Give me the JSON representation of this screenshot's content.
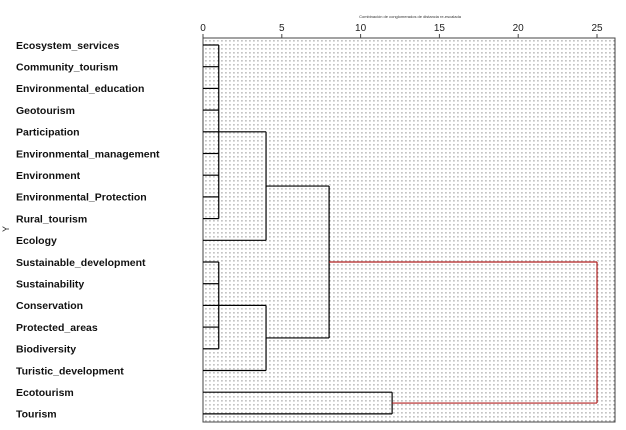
{
  "chart_data": {
    "type": "dendrogram",
    "title": "Combinación de conglomerados de distancia re-escalada",
    "ylabel": "Y",
    "xlim": [
      0,
      25
    ],
    "x_ticks": [
      0,
      5,
      10,
      15,
      20,
      25
    ],
    "grid": true,
    "highlight_color": "#b22222",
    "line_color": "#000000",
    "leaves": [
      "Ecosystem_services",
      "Community_tourism",
      "Environmental_education",
      "Geotourism",
      "Participation",
      "Environmental_management",
      "Environment",
      "Environmental_Protection",
      "Rural_tourism",
      "Ecology",
      "Sustainable_development",
      "Sustainability",
      "Conservation",
      "Protected_areas",
      "Biodiversity",
      "Turistic_development",
      "Ecotourism",
      "Tourism"
    ],
    "merges": [
      {
        "id": "A",
        "children": [
          "Ecosystem_services",
          "Community_tourism",
          "Environmental_education",
          "Geotourism",
          "Participation",
          "Environmental_management",
          "Environment",
          "Environmental_Protection",
          "Rural_tourism"
        ],
        "distance": 1
      },
      {
        "id": "B",
        "children": [
          "Sustainable_development",
          "Sustainability",
          "Conservation",
          "Protected_areas",
          "Biodiversity"
        ],
        "distance": 1
      },
      {
        "id": "C",
        "children": [
          "A",
          "Ecology"
        ],
        "distance": 4
      },
      {
        "id": "D",
        "children": [
          "B",
          "Turistic_development"
        ],
        "distance": 4
      },
      {
        "id": "E",
        "children": [
          "C",
          "D"
        ],
        "distance": 8
      },
      {
        "id": "F",
        "children": [
          "Ecotourism",
          "Tourism"
        ],
        "distance": 12
      },
      {
        "id": "G",
        "children": [
          "E",
          "F"
        ],
        "distance": 25
      }
    ]
  }
}
